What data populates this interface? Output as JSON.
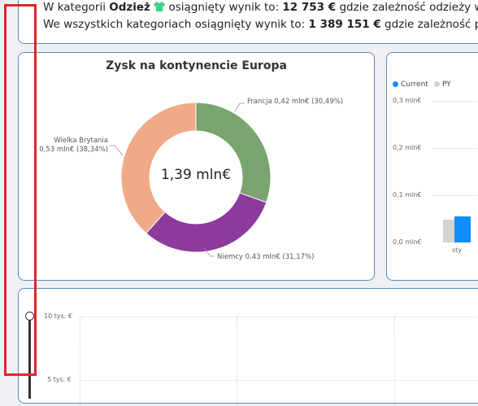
{
  "summary": {
    "line1": {
      "prefix": "W kategorii ",
      "category": "Odzież",
      "mid": " osiągnięty wynik to: ",
      "value": "12 753 €",
      "suffix": " gdzie zależność odzieży w"
    },
    "line2": {
      "prefix": "We wszystkich kategoriach osiągnięty wynik to: ",
      "value": "1 389 151 €",
      "suffix": " gdzie zależność prod"
    }
  },
  "donut": {
    "title": "Zysk na kontynencie Europa",
    "center_value": "1,39 mln€",
    "labels": {
      "francja": "Francja 0,42 mln€ (30,49%)",
      "niemcy": "Niemcy 0,43 mln€ (31,17%)",
      "wb_line1": "Wielka Brytania",
      "wb_line2": "0,53 mln€ (38,34%)"
    }
  },
  "legend": {
    "current": "Current",
    "py": "PY"
  },
  "bar_axis": {
    "t3": "0,3 mln€",
    "t2": "0,2 mln€",
    "t1": "0,1 mln€",
    "t0": "0,0 mln€",
    "category": "sty"
  },
  "bottom_axis": {
    "t10": "10 tys. €",
    "t5": "5 tys. €"
  },
  "chart_data": [
    {
      "type": "pie",
      "title": "Zysk na kontynencie Europa",
      "categories": [
        "Francja",
        "Niemcy",
        "Wielka Brytania"
      ],
      "values": [
        0.42,
        0.43,
        0.53
      ],
      "percent": [
        30.49,
        31.17,
        38.34
      ],
      "unit": "mln€",
      "colors": [
        "#7aa46f",
        "#8e3a9d",
        "#f0aa87"
      ]
    },
    {
      "type": "bar",
      "categories": [
        "sty"
      ],
      "series": [
        {
          "name": "Current",
          "values": [
            0.055
          ],
          "color": "#118dff"
        },
        {
          "name": "PY",
          "values": [
            0.048
          ],
          "color": "#d3d3d3"
        }
      ],
      "ylim": [
        0,
        0.3
      ],
      "legend": "top-left"
    }
  ],
  "colors": {
    "border": "#5b8fb8",
    "highlight": "#e3242b",
    "current": "#118dff",
    "py": "#d3d3d3",
    "shirt": "#3bd38b"
  }
}
